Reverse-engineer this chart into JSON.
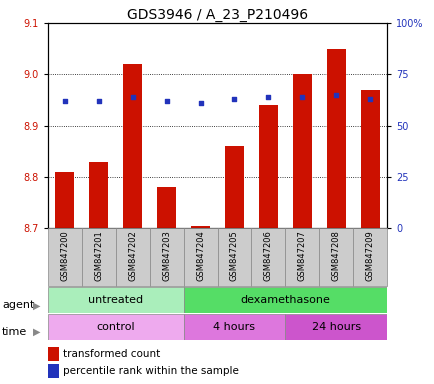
{
  "title": "GDS3946 / A_23_P210496",
  "samples": [
    "GSM847200",
    "GSM847201",
    "GSM847202",
    "GSM847203",
    "GSM847204",
    "GSM847205",
    "GSM847206",
    "GSM847207",
    "GSM847208",
    "GSM847209"
  ],
  "transformed_count": [
    8.81,
    8.83,
    9.02,
    8.78,
    8.705,
    8.86,
    8.94,
    9.0,
    9.05,
    8.97
  ],
  "percentile_rank": [
    62,
    62,
    64,
    62,
    61,
    63,
    64,
    64,
    65,
    63
  ],
  "ylim_left": [
    8.7,
    9.1
  ],
  "ylim_right": [
    0,
    100
  ],
  "yticks_left": [
    8.7,
    8.8,
    8.9,
    9.0,
    9.1
  ],
  "yticks_right": [
    0,
    25,
    50,
    75,
    100
  ],
  "bar_color": "#cc1100",
  "dot_color": "#2233bb",
  "bar_width": 0.55,
  "agent_groups": [
    {
      "label": "untreated",
      "start": 0,
      "end": 4,
      "color": "#aaeebb"
    },
    {
      "label": "dexamethasone",
      "start": 4,
      "end": 10,
      "color": "#55dd66"
    }
  ],
  "time_groups": [
    {
      "label": "control",
      "start": 0,
      "end": 4,
      "color": "#eeaaee"
    },
    {
      "label": "4 hours",
      "start": 4,
      "end": 7,
      "color": "#dd77dd"
    },
    {
      "label": "24 hours",
      "start": 7,
      "end": 10,
      "color": "#cc55cc"
    }
  ],
  "legend_bar_label": "transformed count",
  "legend_dot_label": "percentile rank within the sample",
  "agent_label": "agent",
  "time_label": "time",
  "title_fontsize": 10,
  "tick_fontsize": 7,
  "sample_fontsize": 6,
  "row_label_fontsize": 8,
  "legend_fontsize": 7.5
}
